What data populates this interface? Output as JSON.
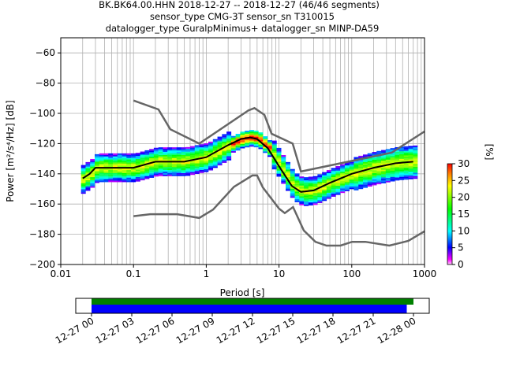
{
  "chart_data": {
    "type": "heatmap",
    "title_lines": [
      "BK.BK64.00.HHN   2018-12-27 -- 2018-12-27  (46/46 segments)",
      "sensor_type CMG-3T sensor_sn T310015",
      "datalogger_type GuralpMinimus+ datalogger_sn MINP-DA59"
    ],
    "xlabel": "Period [s]",
    "ylabel": "Power [m²/s⁴/Hz] [dB]",
    "xscale": "log",
    "xlim": [
      0.01,
      1000
    ],
    "ylim": [
      -200,
      -50
    ],
    "x_ticks": [
      0.01,
      0.1,
      1,
      10,
      100,
      1000
    ],
    "x_tick_labels": [
      "0.01",
      "0.1",
      "1",
      "10",
      "100",
      "1000"
    ],
    "y_ticks": [
      -60,
      -80,
      -100,
      -120,
      -140,
      -160,
      -180,
      -200
    ],
    "y_tick_labels": [
      "−60",
      "−80",
      "−100",
      "−120",
      "−140",
      "−160",
      "−180",
      "−200"
    ],
    "grid": true,
    "colorbar": {
      "label": "[%]",
      "range": [
        0,
        30
      ],
      "ticks": [
        "0",
        "5",
        "10",
        "15",
        "20",
        "25",
        "30"
      ]
    },
    "series": [
      {
        "name": "NHNM",
        "color": "#666666",
        "points": [
          [
            0.1,
            -91.5
          ],
          [
            0.22,
            -97.4
          ],
          [
            0.32,
            -110.5
          ],
          [
            0.8,
            -120
          ],
          [
            3.8,
            -98
          ],
          [
            4.6,
            -96.5
          ],
          [
            6.3,
            -101
          ],
          [
            7.9,
            -113.5
          ],
          [
            15.4,
            -120
          ],
          [
            20,
            -138.5
          ],
          [
            354,
            -126
          ],
          [
            1000,
            -112
          ]
        ]
      },
      {
        "name": "NLNM",
        "color": "#666666",
        "points": [
          [
            0.1,
            -168
          ],
          [
            0.17,
            -166.7
          ],
          [
            0.4,
            -166.7
          ],
          [
            0.8,
            -169.2
          ],
          [
            1.24,
            -163.7
          ],
          [
            2.4,
            -148.6
          ],
          [
            4.3,
            -141.1
          ],
          [
            5,
            -141.1
          ],
          [
            6,
            -149
          ],
          [
            10,
            -163
          ],
          [
            12,
            -166
          ],
          [
            15.6,
            -162
          ],
          [
            21.9,
            -177.5
          ],
          [
            31.6,
            -185
          ],
          [
            45,
            -187.5
          ],
          [
            70,
            -187.5
          ],
          [
            101,
            -185
          ],
          [
            154,
            -185
          ],
          [
            328,
            -187.5
          ],
          [
            600,
            -184.4
          ],
          [
            1000,
            -178
          ]
        ]
      },
      {
        "name": "mean",
        "color": "#000000",
        "points": [
          [
            0.02,
            -143
          ],
          [
            0.025,
            -140
          ],
          [
            0.03,
            -136
          ],
          [
            0.05,
            -136
          ],
          [
            0.1,
            -136
          ],
          [
            0.2,
            -132
          ],
          [
            0.5,
            -132
          ],
          [
            1,
            -129
          ],
          [
            2,
            -121
          ],
          [
            3,
            -117
          ],
          [
            4,
            -116
          ],
          [
            5,
            -117
          ],
          [
            7,
            -123
          ],
          [
            10,
            -135
          ],
          [
            15,
            -148
          ],
          [
            20,
            -152
          ],
          [
            30,
            -151
          ],
          [
            50,
            -146
          ],
          [
            100,
            -140
          ],
          [
            200,
            -136
          ],
          [
            400,
            -133
          ],
          [
            700,
            -132
          ]
        ]
      }
    ],
    "timeline": {
      "tick_labels": [
        "12-27 00",
        "12-27 03",
        "12-27 06",
        "12-27 09",
        "12-27 12",
        "12-27 15",
        "12-27 18",
        "12-27 21",
        "12-28 00"
      ],
      "bars": [
        {
          "name": "data-available",
          "color": "#008000",
          "start_hours": 0,
          "end_hours": 24
        },
        {
          "name": "segments-used",
          "color": "#0000ff",
          "start_hours": 0,
          "end_hours": 23.5
        }
      ]
    }
  }
}
